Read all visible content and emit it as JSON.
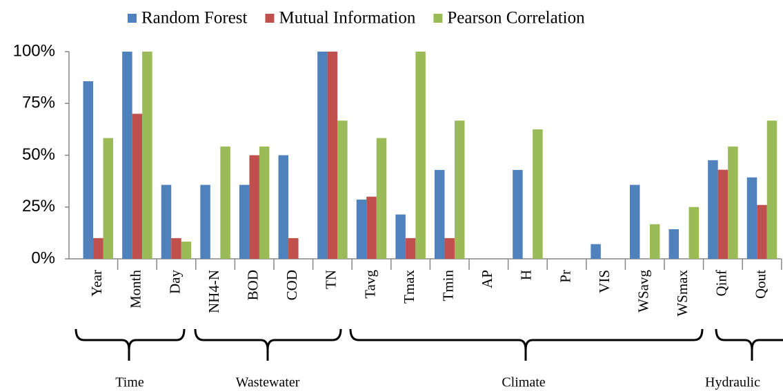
{
  "chart_data": {
    "type": "bar",
    "categories": [
      "Year",
      "Month",
      "Day",
      "NH4-N",
      "BOD",
      "COD",
      "TN",
      "Tavg",
      "Tmax",
      "Tmin",
      "AP",
      "H",
      "Pr",
      "VIS",
      "WSavg",
      "WSmax",
      "Qinf",
      "Qout"
    ],
    "series": [
      {
        "name": "Random Forest",
        "color": "#4f81bd",
        "values": [
          85.7,
          100,
          35.7,
          35.7,
          35.7,
          50,
          100,
          28.6,
          21.4,
          42.9,
          0,
          42.9,
          0,
          7.1,
          35.7,
          14.3,
          47.6,
          39.3
        ]
      },
      {
        "name": "Mutual Information",
        "color": "#c0504d",
        "values": [
          10,
          70,
          10,
          0,
          50,
          10,
          100,
          30,
          10,
          10,
          0,
          0,
          0,
          0,
          0,
          0,
          43,
          26
        ]
      },
      {
        "name": "Pearson Correlation",
        "color": "#9bbb59",
        "values": [
          58.3,
          100,
          8.3,
          54.2,
          54.2,
          0,
          66.7,
          58.3,
          100,
          66.7,
          0,
          62.5,
          0,
          0,
          16.7,
          25,
          54.2,
          66.7
        ]
      }
    ],
    "ylim": [
      0,
      100
    ],
    "yticks": [
      {
        "value": 0,
        "label": "0%"
      },
      {
        "value": 25,
        "label": "25%"
      },
      {
        "value": 50,
        "label": "50%"
      },
      {
        "value": 75,
        "label": "75%"
      },
      {
        "value": 100,
        "label": "100%"
      }
    ],
    "grid": false,
    "groups": [
      "Time",
      "Wastewater",
      "Climate",
      "Hydraulic"
    ]
  }
}
